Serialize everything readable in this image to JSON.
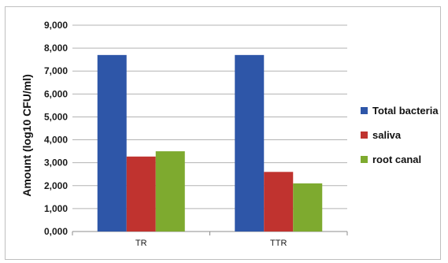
{
  "chart_data": {
    "type": "bar",
    "title": "",
    "xlabel": "",
    "ylabel": "Amount (log10 CFU/ml)",
    "categories": [
      "TR",
      "TTR"
    ],
    "series": [
      {
        "name": "Total bacteria",
        "color": "#2e56a8",
        "values": [
          7.7,
          7.7
        ]
      },
      {
        "name": "saliva",
        "color": "#c0332f",
        "values": [
          3.27,
          2.6
        ]
      },
      {
        "name": "root canal",
        "color": "#7eaa2f",
        "values": [
          3.5,
          2.1
        ]
      }
    ],
    "ylim": [
      0,
      9
    ],
    "yticks": [
      0,
      1,
      2,
      3,
      4,
      5,
      6,
      7,
      8,
      9
    ],
    "ytick_labels": [
      "0,000",
      "1,000",
      "2,000",
      "3,000",
      "4,000",
      "5,000",
      "6,000",
      "7,000",
      "8,000",
      "9,000"
    ],
    "grid": true,
    "legend_position": "right"
  }
}
